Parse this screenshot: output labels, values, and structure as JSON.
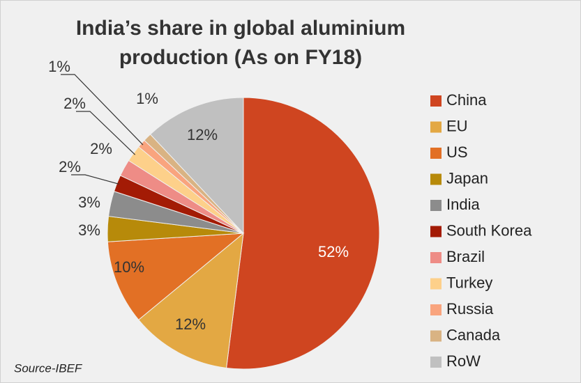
{
  "chart_data": {
    "type": "pie",
    "title": [
      "India’s share in global aluminium",
      "production (As on FY18)"
    ],
    "categories": [
      "China",
      "EU",
      "US",
      "Japan",
      "India",
      "South Korea",
      "Brazil",
      "Turkey",
      "Russia",
      "Canada",
      "RoW"
    ],
    "values": [
      52,
      12,
      10,
      3,
      3,
      2,
      2,
      2,
      1,
      1,
      12
    ],
    "value_labels": [
      "52%",
      "12%",
      "10%",
      "3%",
      "3%",
      "2%",
      "2%",
      "2%",
      "1%",
      "1%",
      "12%"
    ],
    "colors": [
      "#cf4520",
      "#e3a843",
      "#e27025",
      "#b78a0a",
      "#8c8c8c",
      "#a31b05",
      "#ee8c86",
      "#fdd08a",
      "#f9a47e",
      "#d9b383",
      "#c0c0c0"
    ],
    "legend": "right",
    "annotation": "Source-IBEF"
  }
}
